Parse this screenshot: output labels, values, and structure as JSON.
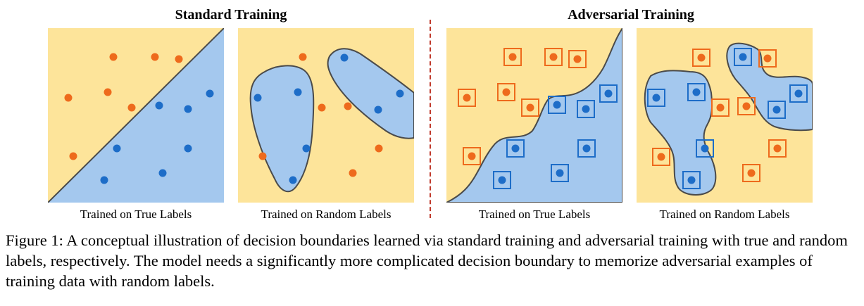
{
  "titles": {
    "standard": "Standard Training",
    "adversarial": "Adversarial Training"
  },
  "panels": [
    {
      "id": "p1",
      "label": "Trained on True Labels"
    },
    {
      "id": "p2",
      "label": "Trained on Random Labels"
    },
    {
      "id": "p3",
      "label": "Trained on True Labels"
    },
    {
      "id": "p4",
      "label": "Trained on Random Labels"
    }
  ],
  "caption": "Figure 1: A conceptual illustration of decision boundaries learned via standard training and adversarial training with true and random labels, respectively. The model needs a significantly more complicated decision boundary to memorize adversarial examples of training data with random labels.",
  "colors": {
    "background_region": "#fde49a",
    "class_region": "#a4c8ee",
    "orange_point": "#ee6a1c",
    "blue_point": "#1d6dc8",
    "divider": "#c0392b"
  }
}
